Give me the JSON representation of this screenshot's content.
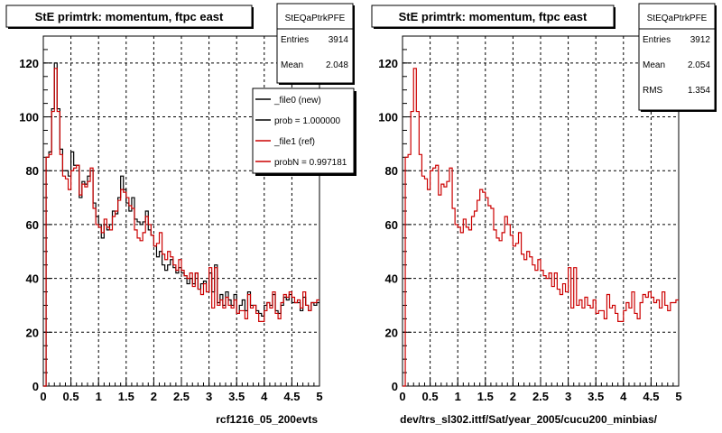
{
  "colors": {
    "background": "#ffffff",
    "new": "#000000",
    "ref": "#cc0000",
    "box_fill": "#ffffff",
    "shadow": "#000000"
  },
  "footer_left_text": "",
  "chart_data": [
    {
      "type": "line",
      "title": "StE primtrk: momentum, ftpc east",
      "xlabel": "rcf1216_05_200evts",
      "xlim": [
        0,
        5
      ],
      "ylim": [
        0,
        130
      ],
      "x_ticks": [
        "0",
        "0.5",
        "1",
        "1.5",
        "2",
        "2.5",
        "3",
        "3.5",
        "4",
        "4.5",
        "5"
      ],
      "y_ticks": [
        "0",
        "20",
        "40",
        "60",
        "80",
        "100",
        "120"
      ],
      "grid": true,
      "stats": {
        "name": "StEQaPtrkPFE",
        "rows": [
          {
            "label": "Entries",
            "value": "3914"
          },
          {
            "label": "Mean",
            "value": "2.048"
          }
        ]
      },
      "legend": {
        "placement": "top-right",
        "entries": [
          "_file0 (new)",
          "prob = 1.000000",
          "_file1 (ref)",
          "probN = 0.997181"
        ]
      },
      "x_edges": [
        0.0,
        0.05,
        0.1,
        0.15,
        0.2,
        0.25,
        0.3,
        0.35,
        0.4,
        0.45,
        0.5,
        0.55,
        0.6,
        0.65,
        0.7,
        0.75,
        0.8,
        0.85,
        0.9,
        0.95,
        1.0,
        1.05,
        1.1,
        1.15,
        1.2,
        1.25,
        1.3,
        1.35,
        1.4,
        1.45,
        1.5,
        1.55,
        1.6,
        1.65,
        1.7,
        1.75,
        1.8,
        1.85,
        1.9,
        1.95,
        2.0,
        2.05,
        2.1,
        2.15,
        2.2,
        2.25,
        2.3,
        2.35,
        2.4,
        2.45,
        2.5,
        2.55,
        2.6,
        2.65,
        2.7,
        2.75,
        2.8,
        2.85,
        2.9,
        2.95,
        3.0,
        3.05,
        3.1,
        3.15,
        3.2,
        3.25,
        3.3,
        3.35,
        3.4,
        3.45,
        3.5,
        3.55,
        3.6,
        3.65,
        3.7,
        3.75,
        3.8,
        3.85,
        3.9,
        3.95,
        4.0,
        4.05,
        4.1,
        4.15,
        4.2,
        4.25,
        4.3,
        4.35,
        4.4,
        4.45,
        4.5,
        4.55,
        4.6,
        4.65,
        4.7,
        4.75,
        4.8,
        4.85,
        4.9,
        4.95,
        5.0
      ],
      "series": [
        {
          "name": "_file0 (new)",
          "values": [
            0,
            85,
            87,
            103,
            120,
            103,
            88,
            80,
            80,
            78,
            87,
            82,
            82,
            70,
            76,
            75,
            78,
            80,
            68,
            63,
            60,
            55,
            60,
            58,
            60,
            65,
            64,
            70,
            78,
            73,
            68,
            65,
            70,
            62,
            61,
            60,
            61,
            65,
            58,
            56,
            52,
            48,
            50,
            45,
            43,
            45,
            47,
            44,
            42,
            44,
            42,
            41,
            38,
            40,
            38,
            42,
            36,
            38,
            39,
            35,
            42,
            35,
            45,
            31,
            34,
            30,
            35,
            32,
            30,
            34,
            27,
            30,
            32,
            28,
            35,
            30,
            30,
            28,
            27,
            26,
            30,
            31,
            30,
            34,
            28,
            27,
            30,
            33,
            32,
            34,
            31,
            31,
            31,
            28,
            33,
            30,
            28,
            31,
            30,
            31
          ]
        },
        {
          "name": "_file1 (ref)",
          "values": [
            0,
            85,
            86,
            102,
            118,
            102,
            86,
            78,
            77,
            73,
            80,
            81,
            82,
            71,
            75,
            74,
            76,
            81,
            66,
            60,
            59,
            57,
            62,
            59,
            58,
            63,
            65,
            69,
            73,
            72,
            70,
            67,
            66,
            58,
            55,
            54,
            57,
            63,
            60,
            56,
            52,
            53,
            57,
            49,
            47,
            50,
            48,
            45,
            43,
            47,
            43,
            41,
            40,
            42,
            37,
            42,
            36,
            34,
            38,
            35,
            44,
            29,
            44,
            30,
            32,
            29,
            33,
            30,
            29,
            32,
            27,
            28,
            28,
            25,
            34,
            29,
            30,
            27,
            24,
            24,
            28,
            31,
            29,
            35,
            27,
            25,
            31,
            34,
            33,
            35,
            33,
            31,
            32,
            29,
            35,
            30,
            28,
            31,
            31,
            32
          ]
        }
      ]
    },
    {
      "type": "line",
      "title": "StE primtrk: momentum, ftpc east",
      "xlabel": "dev/trs_sl302.ittf/Sat/year_2005/cucu200_minbias/",
      "xlim": [
        0,
        5
      ],
      "ylim": [
        0,
        130
      ],
      "x_ticks": [
        "0",
        "0.5",
        "1",
        "1.5",
        "2",
        "2.5",
        "3",
        "3.5",
        "4",
        "4.5",
        "5"
      ],
      "y_ticks": [
        "0",
        "20",
        "40",
        "60",
        "80",
        "100",
        "120"
      ],
      "grid": true,
      "stats": {
        "name": "StEQaPtrkPFE",
        "rows": [
          {
            "label": "Entries",
            "value": "3912"
          },
          {
            "label": "Mean",
            "value": "2.054"
          },
          {
            "label": "RMS",
            "value": "1.354"
          }
        ]
      },
      "x_edges": [
        0.0,
        0.05,
        0.1,
        0.15,
        0.2,
        0.25,
        0.3,
        0.35,
        0.4,
        0.45,
        0.5,
        0.55,
        0.6,
        0.65,
        0.7,
        0.75,
        0.8,
        0.85,
        0.9,
        0.95,
        1.0,
        1.05,
        1.1,
        1.15,
        1.2,
        1.25,
        1.3,
        1.35,
        1.4,
        1.45,
        1.5,
        1.55,
        1.6,
        1.65,
        1.7,
        1.75,
        1.8,
        1.85,
        1.9,
        1.95,
        2.0,
        2.05,
        2.1,
        2.15,
        2.2,
        2.25,
        2.3,
        2.35,
        2.4,
        2.45,
        2.5,
        2.55,
        2.6,
        2.65,
        2.7,
        2.75,
        2.8,
        2.85,
        2.9,
        2.95,
        3.0,
        3.05,
        3.1,
        3.15,
        3.2,
        3.25,
        3.3,
        3.35,
        3.4,
        3.45,
        3.5,
        3.55,
        3.6,
        3.65,
        3.7,
        3.75,
        3.8,
        3.85,
        3.9,
        3.95,
        4.0,
        4.05,
        4.1,
        4.15,
        4.2,
        4.25,
        4.3,
        4.35,
        4.4,
        4.45,
        4.5,
        4.55,
        4.6,
        4.65,
        4.7,
        4.75,
        4.8,
        4.85,
        4.9,
        4.95,
        5.0
      ],
      "series": [
        {
          "name": "ref",
          "values": [
            0,
            85,
            86,
            102,
            118,
            102,
            86,
            78,
            77,
            73,
            80,
            81,
            82,
            71,
            75,
            74,
            76,
            81,
            66,
            60,
            59,
            57,
            62,
            59,
            58,
            63,
            65,
            69,
            73,
            72,
            70,
            67,
            66,
            58,
            55,
            54,
            57,
            63,
            60,
            56,
            52,
            53,
            57,
            49,
            47,
            50,
            48,
            45,
            43,
            47,
            43,
            41,
            40,
            42,
            37,
            42,
            36,
            34,
            38,
            35,
            44,
            29,
            44,
            30,
            32,
            29,
            33,
            30,
            29,
            32,
            27,
            28,
            28,
            25,
            34,
            29,
            30,
            27,
            24,
            24,
            28,
            31,
            29,
            35,
            27,
            25,
            31,
            34,
            33,
            35,
            33,
            31,
            32,
            29,
            35,
            30,
            28,
            31,
            31,
            32
          ]
        }
      ]
    }
  ]
}
